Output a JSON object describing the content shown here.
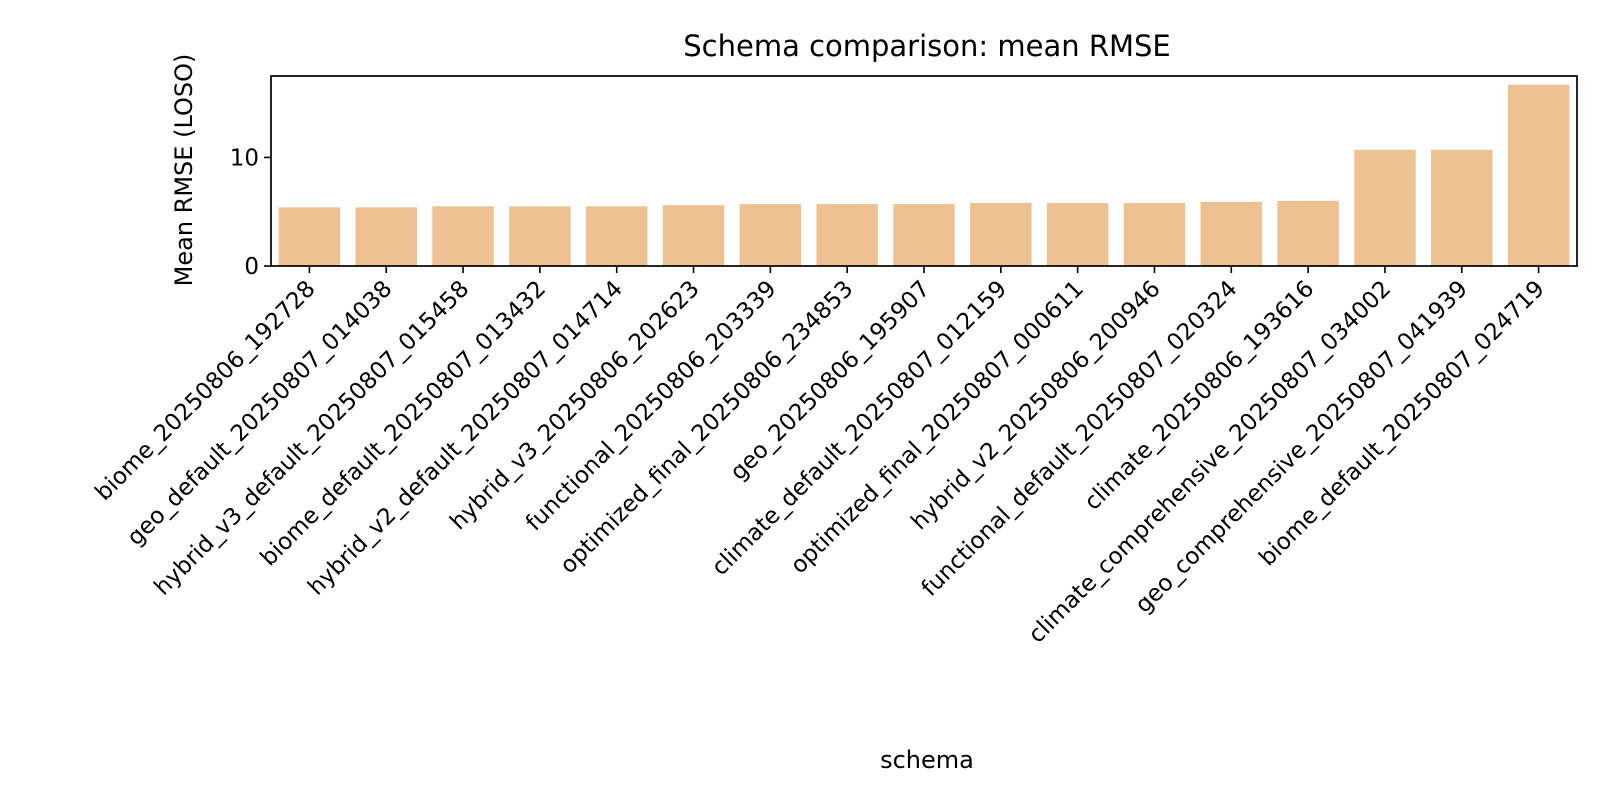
{
  "chart_data": {
    "type": "bar",
    "title": "Schema comparison: mean RMSE",
    "xlabel": "schema",
    "ylabel": "Mean RMSE (LOSO)",
    "categories": [
      "biome_20250806_192728",
      "geo_default_20250807_014038",
      "hybrid_v3_default_20250807_015458",
      "biome_default_20250807_013432",
      "hybrid_v2_default_20250807_014714",
      "hybrid_v3_20250806_202623",
      "functional_20250806_203339",
      "optimized_final_20250806_234853",
      "geo_20250806_195907",
      "climate_default_20250807_012159",
      "optimized_final_20250807_000611",
      "hybrid_v2_20250806_200946",
      "functional_default_20250807_020324",
      "climate_20250806_193616",
      "climate_comprehensive_20250807_034002",
      "geo_comprehensive_20250807_041939",
      "biome_default_20250807_024719"
    ],
    "values": [
      5.4,
      5.4,
      5.5,
      5.5,
      5.5,
      5.6,
      5.7,
      5.7,
      5.7,
      5.8,
      5.8,
      5.8,
      5.9,
      6.0,
      10.7,
      10.7,
      16.7
    ],
    "ylim": [
      0,
      17.5
    ],
    "yticks": [
      0,
      10
    ],
    "grid": false,
    "bar_color": "#eec193"
  }
}
